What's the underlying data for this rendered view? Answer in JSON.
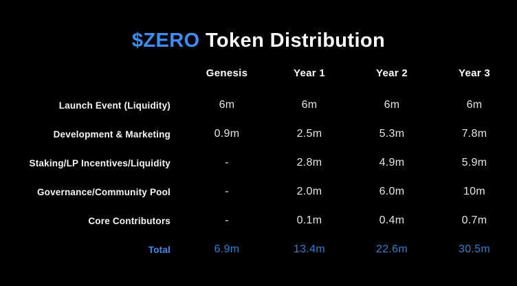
{
  "page": {
    "background": "#000000",
    "accent_blue": "#3d8ef2",
    "total_blue": "#2e7fd6",
    "text_white": "#f6f6f6"
  },
  "title": {
    "highlight": "$ZERO",
    "rest": " Token Distribution"
  },
  "chart_data": {
    "type": "table",
    "title": "$ZERO Token Distribution",
    "columns": [
      "Genesis",
      "Year 1",
      "Year 2",
      "Year 3"
    ],
    "rows": [
      {
        "label": "Launch Event (Liquidity)",
        "values": [
          "6m",
          "6m",
          "6m",
          "6m"
        ]
      },
      {
        "label": "Development & Marketing",
        "values": [
          "0.9m",
          "2.5m",
          "5.3m",
          "7.8m"
        ]
      },
      {
        "label": "Staking/LP Incentives/Liquidity",
        "values": [
          "-",
          "2.8m",
          "4.9m",
          "5.9m"
        ]
      },
      {
        "label": "Governance/Community Pool",
        "values": [
          "-",
          "2.0m",
          "6.0m",
          "10m"
        ]
      },
      {
        "label": "Core Contributors",
        "values": [
          "-",
          "0.1m",
          "0.4m",
          "0.7m"
        ]
      }
    ],
    "total": {
      "label": "Total",
      "values": [
        "6.9m",
        "13.4m",
        "22.6m",
        "30.5m"
      ]
    }
  }
}
